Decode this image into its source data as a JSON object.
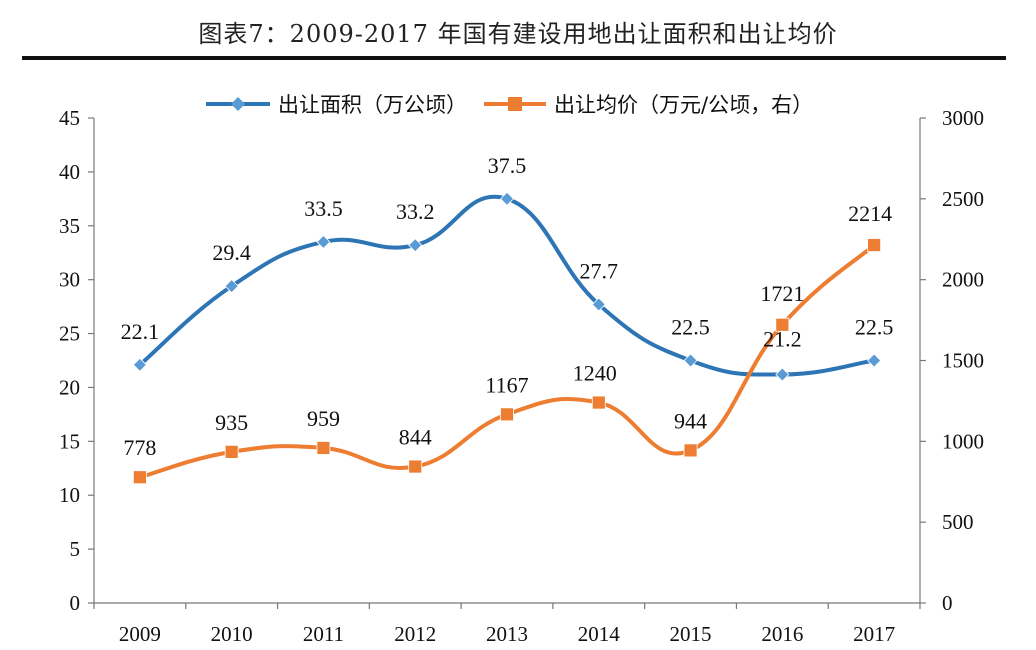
{
  "title": "图表7：2009-2017 年国有建设用地出让面积和出让均价",
  "chart_data": {
    "type": "line",
    "categories": [
      "2009",
      "2010",
      "2011",
      "2012",
      "2013",
      "2014",
      "2015",
      "2016",
      "2017"
    ],
    "series": [
      {
        "name": "出让面积（万公顷）",
        "axis": "left",
        "color": "#2E75B6",
        "marker": "diamond",
        "values": [
          22.1,
          29.4,
          33.5,
          33.2,
          37.5,
          27.7,
          22.5,
          21.2,
          22.5
        ],
        "labels": [
          "22.1",
          "29.4",
          "33.5",
          "33.2",
          "37.5",
          "27.7",
          "22.5",
          "21.2",
          "22.5"
        ]
      },
      {
        "name": "出让均价（万元/公顷，右）",
        "axis": "right",
        "color": "#ED7D31",
        "marker": "square",
        "values": [
          778,
          935,
          959,
          844,
          1167,
          1240,
          944,
          1721,
          2214
        ],
        "labels": [
          "778",
          "935",
          "959",
          "844",
          "1167",
          "1240",
          "944",
          "1721",
          "2214"
        ]
      }
    ],
    "y_left": {
      "min": 0,
      "max": 45,
      "ticks": [
        "0",
        "5",
        "10",
        "15",
        "20",
        "25",
        "30",
        "35",
        "40",
        "45"
      ]
    },
    "y_right": {
      "min": 0,
      "max": 3000,
      "ticks": [
        "0",
        "500",
        "1000",
        "1500",
        "2000",
        "2500",
        "3000"
      ]
    },
    "legend_position": "top",
    "grid": false
  }
}
